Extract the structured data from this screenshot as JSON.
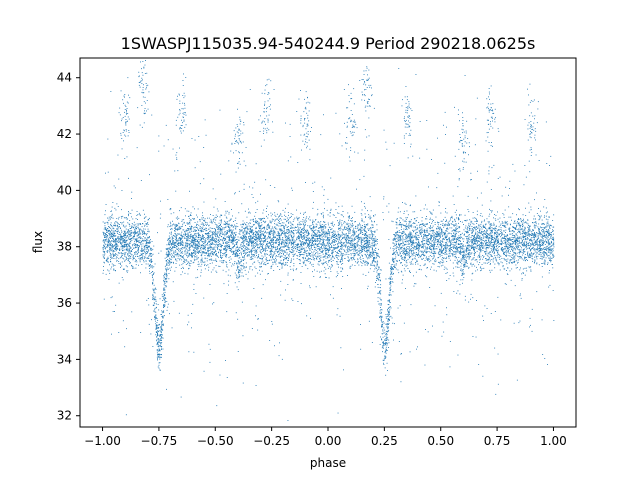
{
  "chart_data": {
    "type": "scatter",
    "title": "1SWASPJ115035.94-540244.9 Period 290218.0625s",
    "xlabel": "phase",
    "ylabel": "flux",
    "xlim": [
      -1.1,
      1.1
    ],
    "ylim": [
      31.6,
      44.7
    ],
    "x_ticks": [
      -1.0,
      -0.75,
      -0.5,
      -0.25,
      0.0,
      0.25,
      0.5,
      0.75,
      1.0
    ],
    "x_tick_labels": [
      "−1.00",
      "−0.75",
      "−0.50",
      "−0.25",
      "0.00",
      "0.25",
      "0.50",
      "0.75",
      "1.00"
    ],
    "y_ticks": [
      32,
      34,
      36,
      38,
      40,
      42,
      44
    ],
    "y_tick_labels": [
      "32",
      "34",
      "36",
      "38",
      "40",
      "42",
      "44"
    ],
    "grid": false,
    "legend": "none",
    "marker_color": "#1f77b4",
    "series": [
      {
        "baseline_flux": 38.2,
        "baseline_scatter": 0.45,
        "eclipses": [
          {
            "phase": -0.75,
            "depth_flux": 34.5,
            "width_phase": 0.04
          },
          {
            "phase": 0.25,
            "depth_flux": 34.5,
            "width_phase": 0.04
          }
        ],
        "secondary_dips": [
          {
            "phase": -0.4,
            "depth_flux": 37.2
          },
          {
            "phase": 0.6,
            "depth_flux": 37.2
          }
        ],
        "outlier_clusters": [
          {
            "phase": -0.9,
            "flux": 42.6
          },
          {
            "phase": -0.82,
            "flux": 43.5
          },
          {
            "phase": -0.65,
            "flux": 42.7
          },
          {
            "phase": -0.4,
            "flux": 41.7
          },
          {
            "phase": -0.28,
            "flux": 42.7
          },
          {
            "phase": -0.1,
            "flux": 42.3
          },
          {
            "phase": 0.1,
            "flux": 42.5
          },
          {
            "phase": 0.17,
            "flux": 43.6
          },
          {
            "phase": 0.35,
            "flux": 42.7
          },
          {
            "phase": 0.6,
            "flux": 41.7
          },
          {
            "phase": 0.72,
            "flux": 42.7
          },
          {
            "phase": 0.9,
            "flux": 42.3
          }
        ]
      }
    ]
  }
}
